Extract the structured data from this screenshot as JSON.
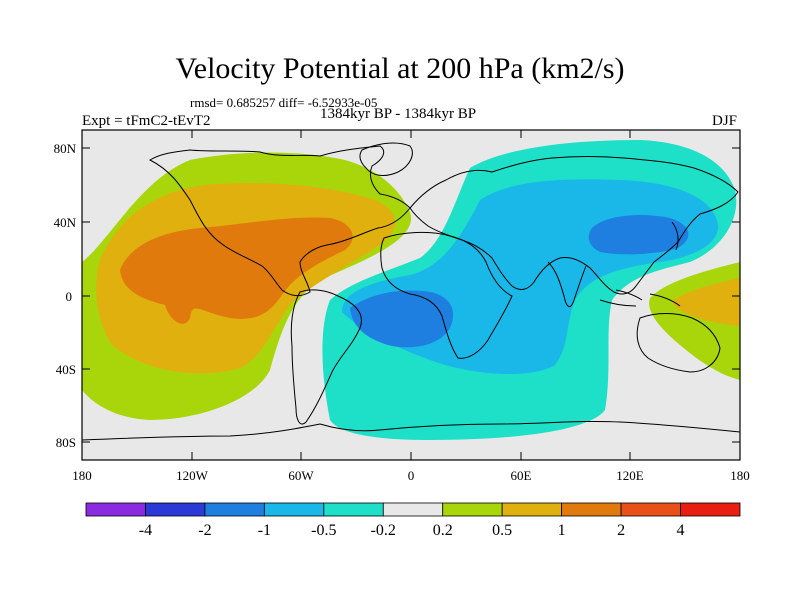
{
  "title": "Velocity Potential at 200 hPa (km2/s)",
  "stats": "rmsd= 0.685257  diff= -6.52933e-05",
  "experiment": "Expt = tFmC2-tEvT2",
  "period": "1384kyr BP - 1384kyr BP",
  "season": "DJF",
  "lat_labels": [
    "80N",
    "40N",
    "0",
    "40S",
    "80S"
  ],
  "lon_labels": [
    "180",
    "120W",
    "60W",
    "0",
    "60E",
    "120E",
    "180"
  ],
  "colorbar": {
    "labels": [
      "-4",
      "-2",
      "-1",
      "-0.5",
      "-0.2",
      "0.2",
      "0.5",
      "1",
      "2",
      "4"
    ],
    "colors": [
      "#8a2be2",
      "#2b3ad6",
      "#1e7fe0",
      "#19b8e8",
      "#1ee0c8",
      "#e8e8e8",
      "#a8d60a",
      "#e0b00e",
      "#e07a0c",
      "#e85018",
      "#e81e10"
    ]
  },
  "colors": {
    "ocean": "#e8e8e8",
    "coast": "#000000",
    "positive_1": "#a8d60a",
    "positive_2": "#e0b00e",
    "positive_3": "#e07a0c",
    "negative_1": "#1ee0c8",
    "negative_2": "#19b8e8",
    "negative_3": "#1e7fe0"
  }
}
